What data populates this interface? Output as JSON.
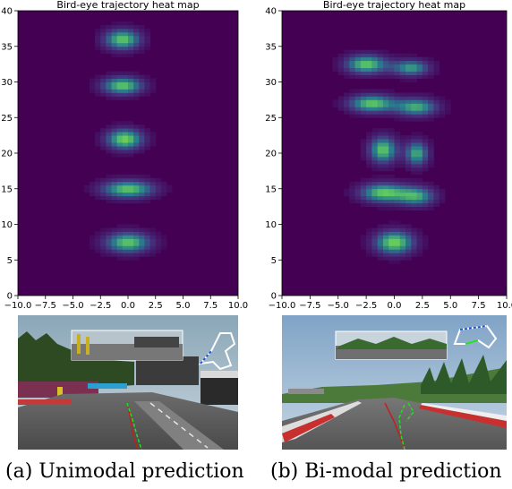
{
  "captions": {
    "a": "(a) Unimodal prediction",
    "b": "(b) Bi-modal prediction"
  },
  "colors": {
    "background": "#440154",
    "low": "#46327e",
    "mid": "#277f8e",
    "high": "#5ec962",
    "peak": "#b5de2b"
  },
  "chart_data": [
    {
      "type": "heatmap",
      "title": "Bird-eye trajectory heat map",
      "xlim": [
        -10,
        10
      ],
      "ylim": [
        0,
        40
      ],
      "xticks": [
        "−10.0",
        "−7.5",
        "−5.0",
        "−2.5",
        "0.0",
        "2.5",
        "5.0",
        "7.5",
        "10.0"
      ],
      "yticks": [
        "0",
        "5",
        "10",
        "15",
        "20",
        "25",
        "30",
        "35",
        "40"
      ],
      "blobs": [
        {
          "x": -0.5,
          "y": 36.0,
          "sx": 1.6,
          "sy": 1.4,
          "intensity": 0.85
        },
        {
          "x": -0.5,
          "y": 29.5,
          "sx": 1.8,
          "sy": 1.2,
          "intensity": 0.85
        },
        {
          "x": -0.3,
          "y": 22.0,
          "sx": 1.6,
          "sy": 1.4,
          "intensity": 0.9
        },
        {
          "x": 0.0,
          "y": 15.0,
          "sx": 2.3,
          "sy": 1.2,
          "intensity": 0.85
        },
        {
          "x": 0.0,
          "y": 7.5,
          "sx": 2.0,
          "sy": 1.4,
          "intensity": 0.85
        }
      ]
    },
    {
      "type": "heatmap",
      "title": "Bird-eye trajectory heat map",
      "xlim": [
        -10,
        10
      ],
      "ylim": [
        0,
        40
      ],
      "xticks": [
        "−10.0",
        "−7.5",
        "−5.0",
        "−2.5",
        "0.0",
        "2.5",
        "5.0",
        "7.5",
        "10.0"
      ],
      "yticks": [
        "0",
        "5",
        "10",
        "15",
        "20",
        "25",
        "30",
        "35",
        "40"
      ],
      "blobs": [
        {
          "x": -2.5,
          "y": 32.5,
          "sx": 1.8,
          "sy": 1.3,
          "intensity": 0.85
        },
        {
          "x": 1.5,
          "y": 32.0,
          "sx": 1.6,
          "sy": 1.1,
          "intensity": 0.7
        },
        {
          "x": -2.0,
          "y": 27.0,
          "sx": 2.0,
          "sy": 1.2,
          "intensity": 0.85
        },
        {
          "x": 2.0,
          "y": 26.5,
          "sx": 1.8,
          "sy": 1.2,
          "intensity": 0.75
        },
        {
          "x": -1.0,
          "y": 20.5,
          "sx": 1.2,
          "sy": 1.8,
          "intensity": 0.85
        },
        {
          "x": 2.0,
          "y": 20.0,
          "sx": 1.0,
          "sy": 1.7,
          "intensity": 0.75
        },
        {
          "x": -1.0,
          "y": 14.5,
          "sx": 2.0,
          "sy": 1.3,
          "intensity": 0.85
        },
        {
          "x": 2.0,
          "y": 14.0,
          "sx": 1.6,
          "sy": 1.3,
          "intensity": 0.7
        },
        {
          "x": 0.0,
          "y": 7.5,
          "sx": 1.7,
          "sy": 1.6,
          "intensity": 0.9
        }
      ]
    }
  ]
}
